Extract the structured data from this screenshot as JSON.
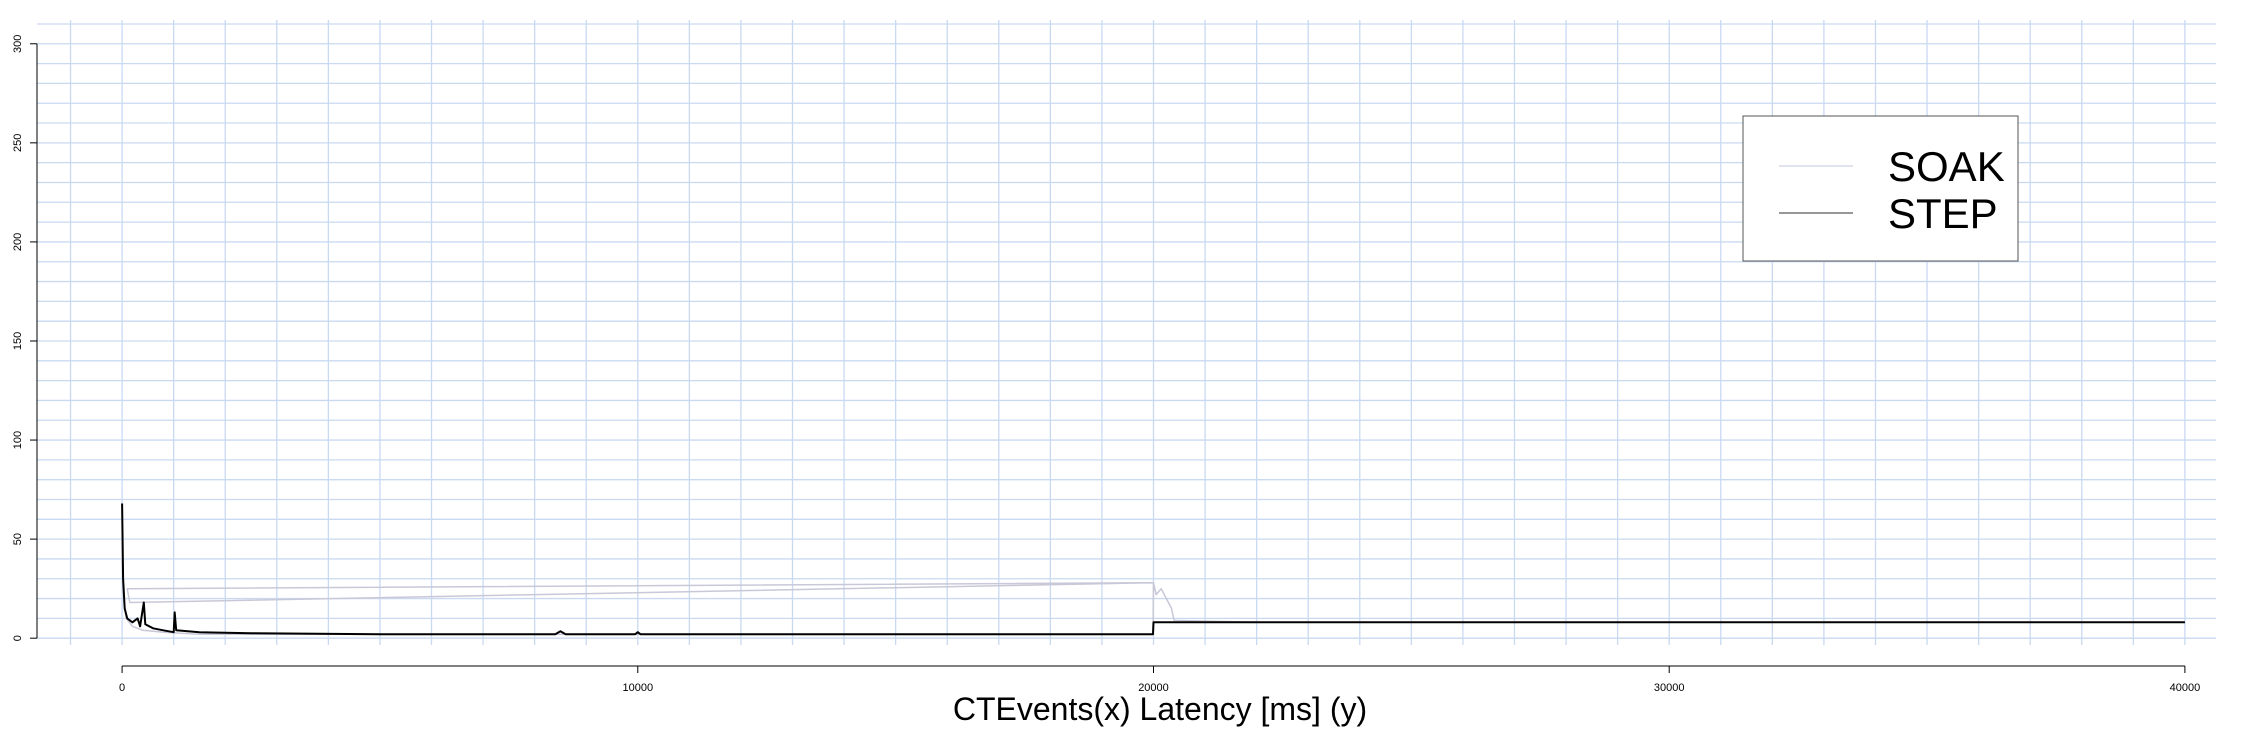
{
  "chart_data": {
    "type": "line",
    "title": "",
    "xlabel": "CTEvents(x)  Latency [ms] (y)",
    "ylabel": "",
    "xlim": [
      -1650,
      40700
    ],
    "ylim": [
      -10,
      312
    ],
    "xticks": [
      0,
      10000,
      20000,
      30000,
      40000
    ],
    "yticks": [
      0,
      50,
      100,
      150,
      200,
      250,
      300
    ],
    "xgrid_step": 1000,
    "ygrid_step": 10,
    "grid": true,
    "grid_color": "#c9d9f2",
    "legend_position": "top-right",
    "series": [
      {
        "name": "SOAK",
        "color": "#c8c8d8",
        "points": [
          [
            0,
            40
          ],
          [
            30,
            20
          ],
          [
            80,
            10
          ],
          [
            200,
            6
          ],
          [
            400,
            4
          ],
          [
            800,
            3
          ],
          [
            1500,
            2
          ],
          [
            5000,
            2
          ],
          [
            10000,
            2
          ],
          [
            15000,
            2
          ],
          [
            19990,
            2
          ],
          [
            20000,
            28
          ],
          [
            100,
            25
          ],
          [
            150,
            18
          ],
          [
            20000,
            28
          ],
          [
            20050,
            22
          ],
          [
            20150,
            25
          ],
          [
            20250,
            20
          ],
          [
            20350,
            15
          ],
          [
            20400,
            9
          ],
          [
            22000,
            8
          ],
          [
            30000,
            8
          ],
          [
            40000,
            8
          ]
        ]
      },
      {
        "name": "STEP",
        "color": "#000000",
        "points": [
          [
            0,
            68
          ],
          [
            20,
            30
          ],
          [
            50,
            15
          ],
          [
            100,
            10
          ],
          [
            200,
            8
          ],
          [
            300,
            10
          ],
          [
            350,
            6
          ],
          [
            420,
            18
          ],
          [
            450,
            7
          ],
          [
            600,
            5
          ],
          [
            800,
            4
          ],
          [
            1000,
            3
          ],
          [
            1020,
            13
          ],
          [
            1050,
            4
          ],
          [
            1500,
            3
          ],
          [
            2500,
            2.5
          ],
          [
            5000,
            2
          ],
          [
            8400,
            2
          ],
          [
            8500,
            3.5
          ],
          [
            8600,
            2
          ],
          [
            9950,
            2
          ],
          [
            10000,
            3
          ],
          [
            10050,
            2
          ],
          [
            15000,
            2
          ],
          [
            19990,
            2
          ],
          [
            20000,
            8
          ],
          [
            25000,
            8
          ],
          [
            30000,
            8
          ],
          [
            35000,
            8
          ],
          [
            40000,
            8
          ]
        ]
      }
    ]
  }
}
